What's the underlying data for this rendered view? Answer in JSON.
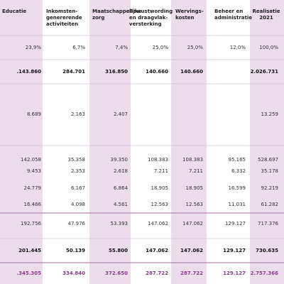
{
  "table": {
    "headers": [
      [
        "Educatie"
      ],
      [
        "Inkomsten-",
        "genererende",
        "activiteiten"
      ],
      [
        "Maatschappelijke",
        "zorg"
      ],
      [
        "Bewustwording",
        "en draagvlak-",
        "versterking"
      ],
      [
        "Wervings-",
        "kosten"
      ],
      [
        "Beheer en",
        "administratie"
      ],
      [
        "Realisatie",
        "2021"
      ]
    ],
    "rows": [
      [
        "23,9%",
        "6,7%",
        "7,4%",
        "25,0%",
        "25,0%",
        "12,0%",
        "100,0%"
      ],
      [
        ".143.860",
        "284.701",
        "316.850",
        "140.660",
        "140.660",
        null,
        "2.026.731"
      ],
      [
        "8.689",
        "2.163",
        "2.407",
        null,
        null,
        null,
        "13.259"
      ],
      [
        "142.058",
        "35.358",
        "39.350",
        "108.383",
        "108.383",
        "95.165",
        "528.697"
      ],
      [
        "9.453",
        "2.353",
        "2.618",
        "7.211",
        "7.211",
        "6.332",
        "35.178"
      ],
      [
        "24.779",
        "6.167",
        "6.864",
        "18.905",
        "18.905",
        "16.599",
        "92.219"
      ],
      [
        "16.466",
        "4.098",
        "4.561",
        "12.563",
        "12.563",
        "11.031",
        "61.282"
      ],
      [
        "192.756",
        "47.976",
        "53.393",
        "147.062",
        "147.062",
        "129.127",
        "717.376"
      ],
      [
        "201.445",
        "50.139",
        "55.800",
        "147.062",
        "147.062",
        "129.127",
        "730.635"
      ],
      [
        ".345.305",
        "334.840",
        "372.650",
        "287.722",
        "287.722",
        "129.127",
        "2.757.366"
      ]
    ]
  }
}
